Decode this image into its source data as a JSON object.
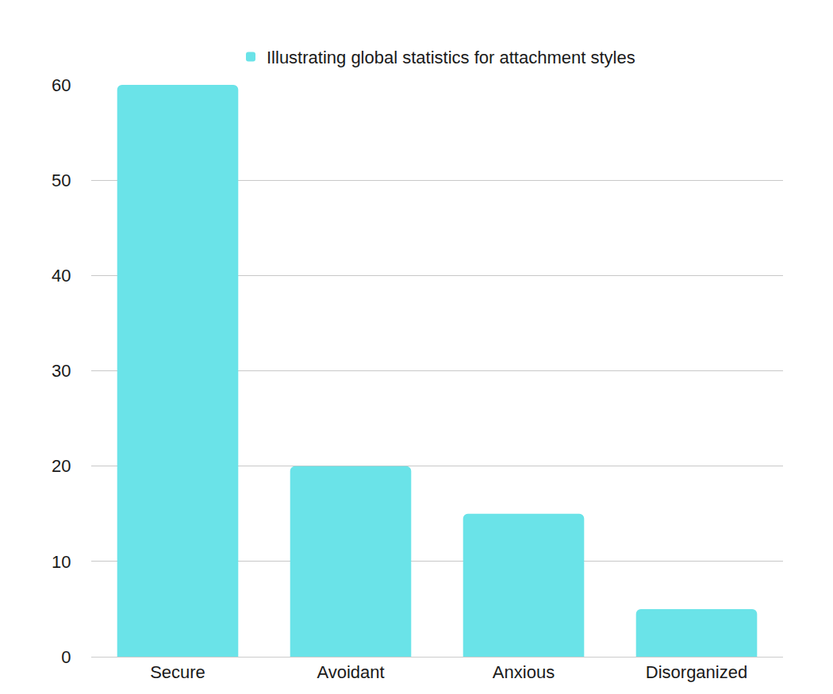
{
  "chart_data": {
    "type": "bar",
    "categories": [
      "Secure",
      "Avoidant",
      "Anxious",
      "Disorganized"
    ],
    "series": [
      {
        "name": "Illustrating global statistics for attachment styles",
        "color": "#6ae3e8",
        "values": [
          60,
          20,
          15,
          5
        ]
      }
    ],
    "ylim": [
      0,
      60
    ],
    "yticks": [
      0,
      10,
      20,
      30,
      40,
      50,
      60
    ],
    "grid": true,
    "legend": "top"
  }
}
